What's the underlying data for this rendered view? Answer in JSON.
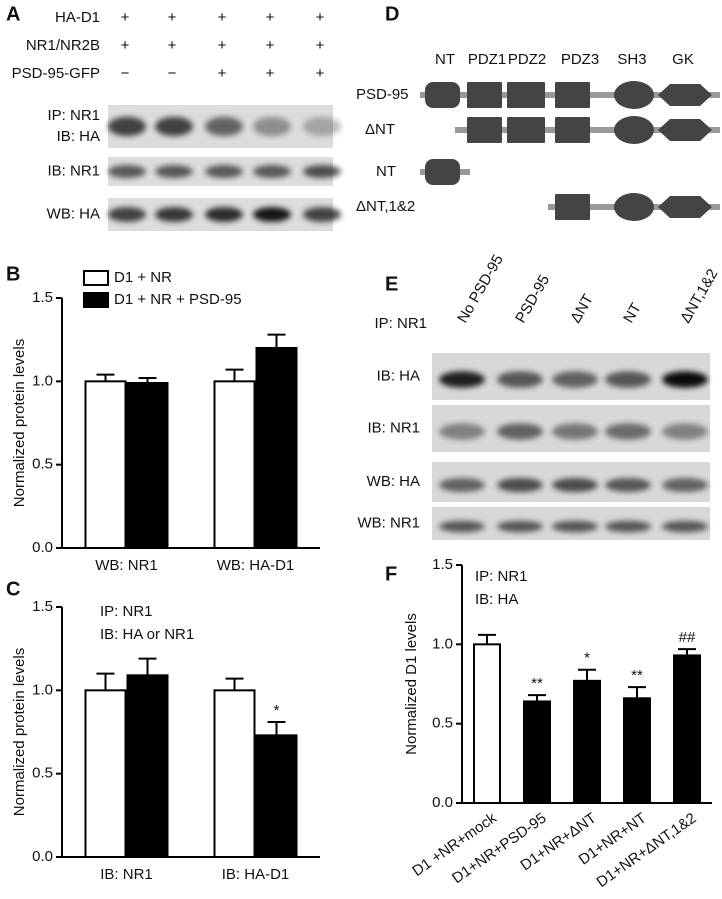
{
  "panel_a": {
    "letter": "A",
    "conditions": [
      {
        "label": "HA-D1",
        "values": [
          "+",
          "+",
          "+",
          "+",
          "+"
        ]
      },
      {
        "label": "NR1/NR2B",
        "values": [
          "+",
          "+",
          "+",
          "+",
          "+"
        ]
      },
      {
        "label": "PSD-95-GFP",
        "values": [
          "−",
          "−",
          "+",
          "+",
          "+"
        ]
      }
    ],
    "blots": [
      [
        "IP: NR1",
        "IB: HA"
      ],
      [
        "IB: NR1"
      ],
      [
        "WB: HA"
      ]
    ]
  },
  "panel_d": {
    "letter": "D",
    "domains": [
      "NT",
      "PDZ1",
      "PDZ2",
      "PDZ3",
      "SH3",
      "GK"
    ],
    "constructs": [
      "PSD-95",
      "ΔNT",
      "NT",
      "ΔNT,1&2"
    ]
  },
  "panel_e": {
    "letter": "E",
    "lanes": [
      "No PSD-95",
      "PSD-95",
      "ΔNT",
      "NT",
      "ΔNT,1&2"
    ],
    "header": "IP: NR1",
    "blots": [
      "IB: HA",
      "IB: NR1",
      "WB: HA",
      "WB: NR1"
    ]
  },
  "chart_data": [
    {
      "type": "bar",
      "letter": "B",
      "ylabel": "Normalized protein levels",
      "categories": [
        "WB: NR1",
        "WB: HA-D1"
      ],
      "series": [
        {
          "name": "D1 + NR",
          "color": "#ffffff",
          "values": [
            1.0,
            1.0
          ],
          "errors": [
            0.04,
            0.07
          ]
        },
        {
          "name": "D1 + NR + PSD-95",
          "color": "#000000",
          "values": [
            0.99,
            1.2
          ],
          "errors": [
            0.03,
            0.08
          ]
        }
      ],
      "ylim": [
        0,
        1.5
      ],
      "yticks": [
        {
          "value": 0,
          "label": "0.0"
        },
        {
          "value": 0.5,
          "label": "0.5"
        },
        {
          "value": 1,
          "label": "1.0"
        },
        {
          "value": 1.5,
          "label": "1.5"
        }
      ],
      "legend": "upper-left"
    },
    {
      "type": "bar",
      "letter": "C",
      "ylabel": "Normalized protein levels",
      "annotations": [
        "IP: NR1",
        "IB: HA or NR1"
      ],
      "categories": [
        "IB: NR1",
        "IB: HA-D1"
      ],
      "series": [
        {
          "color": "#ffffff",
          "values": [
            1.0,
            1.0
          ],
          "errors": [
            0.1,
            0.07
          ]
        },
        {
          "color": "#000000",
          "values": [
            1.09,
            0.73
          ],
          "errors": [
            0.1,
            0.08
          ],
          "significance": [
            null,
            "*"
          ]
        }
      ],
      "ylim": [
        0,
        1.5
      ],
      "yticks": [
        {
          "value": 0,
          "label": "0.0"
        },
        {
          "value": 0.5,
          "label": "0.5"
        },
        {
          "value": 1,
          "label": "1.0"
        },
        {
          "value": 1.5,
          "label": "1.5"
        }
      ]
    },
    {
      "type": "bar",
      "letter": "F",
      "ylabel": "Normalized D1 levels",
      "annotations": [
        "IP: NR1",
        "IB: HA"
      ],
      "categories": [
        "D1 +NR+mock",
        "D1+NR+PSD-95",
        "D1+NR+ΔNT",
        "D1+NR+NT",
        "D1+NR+ΔNT,1&2"
      ],
      "series": [
        {
          "colors": [
            "#ffffff",
            "#000000",
            "#000000",
            "#000000",
            "#000000"
          ],
          "values": [
            1.0,
            0.64,
            0.77,
            0.66,
            0.93
          ],
          "errors": [
            0.06,
            0.04,
            0.07,
            0.07,
            0.04
          ],
          "significance": [
            null,
            "**",
            "*",
            "**",
            "##"
          ]
        }
      ],
      "ylim": [
        0,
        1.5
      ],
      "yticks": [
        {
          "value": 0,
          "label": "0.0"
        },
        {
          "value": 0.5,
          "label": "0.5"
        },
        {
          "value": 1,
          "label": "1.0"
        },
        {
          "value": 1.5,
          "label": "1.5"
        }
      ]
    }
  ]
}
